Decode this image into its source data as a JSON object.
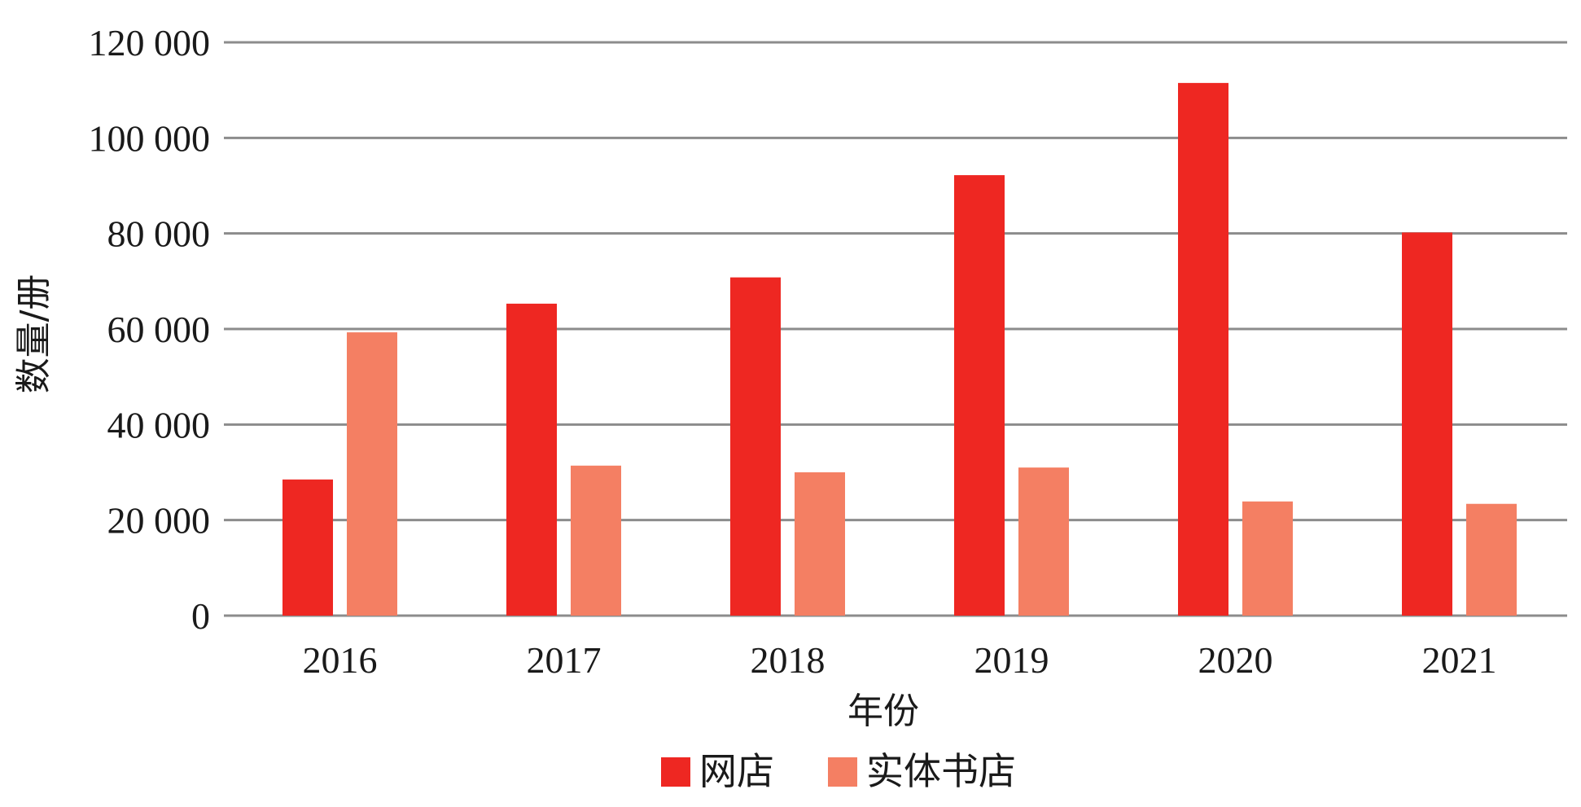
{
  "chart_data": {
    "type": "bar",
    "categories": [
      "2016",
      "2017",
      "2018",
      "2019",
      "2020",
      "2021"
    ],
    "series": [
      {
        "name": "网店",
        "color": "#ee2722",
        "values": [
          28500,
          65300,
          70800,
          92200,
          111500,
          80200
        ]
      },
      {
        "name": "实体书店",
        "color": "#f47f63",
        "values": [
          59300,
          31400,
          30000,
          31000,
          23900,
          23400
        ]
      }
    ],
    "xlabel": "年份",
    "ylabel": "数量/册",
    "ylim": [
      0,
      120000
    ],
    "yticks": [
      "0",
      "20 000",
      "40 000",
      "60 000",
      "80 000",
      "100 000",
      "120 000"
    ],
    "grid": true,
    "legend_position": "bottom"
  }
}
